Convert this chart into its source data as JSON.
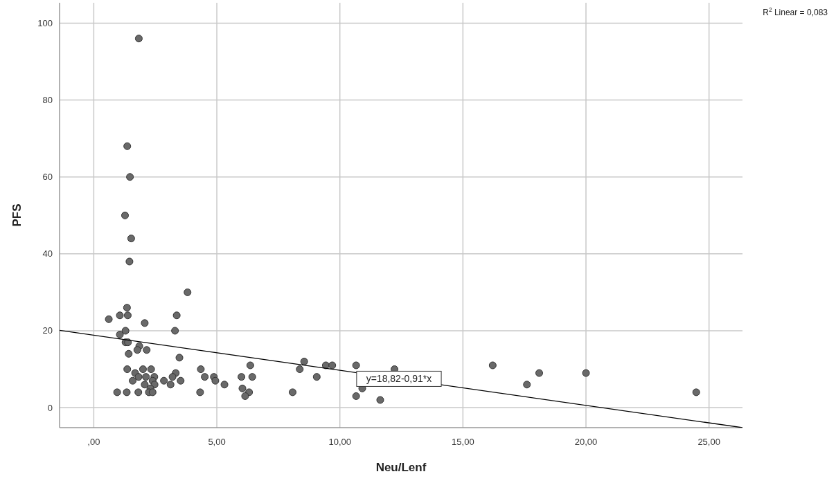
{
  "chart_data": {
    "type": "scatter",
    "xlabel": "Neu/Lenf",
    "ylabel": "PFS",
    "xlim": [
      -1.39,
      26.36
    ],
    "ylim": [
      -5.2,
      105.3
    ],
    "xticks": [
      {
        "value": 0,
        "label": ",00"
      },
      {
        "value": 5,
        "label": "5,00"
      },
      {
        "value": 10,
        "label": "10,00"
      },
      {
        "value": 15,
        "label": "15,00"
      },
      {
        "value": 20,
        "label": "20,00"
      },
      {
        "value": 25,
        "label": "25,00"
      }
    ],
    "yticks": [
      0,
      20,
      40,
      60,
      80,
      100
    ],
    "grid": true,
    "series": [
      {
        "marker": "circle",
        "color": "#696969",
        "x": [
          1.83,
          1.36,
          1.47,
          1.27,
          1.52,
          1.45,
          3.81,
          1.35,
          1.06,
          1.38,
          3.37,
          0.61,
          2.07,
          1.29,
          3.3,
          1.06,
          1.29,
          1.39,
          1.85,
          1.77,
          2.15,
          1.42,
          3.48,
          6.36,
          1.36,
          2.0,
          2.33,
          4.35,
          1.68,
          3.33,
          1.82,
          2.12,
          2.46,
          3.2,
          4.51,
          4.88,
          6.0,
          6.44,
          1.58,
          2.39,
          2.85,
          3.53,
          4.94,
          2.07,
          2.47,
          3.12,
          5.31,
          2.3,
          6.04,
          0.95,
          1.34,
          1.81,
          2.24,
          2.39,
          4.32,
          6.31,
          6.15,
          8.55,
          8.37,
          9.43,
          9.69,
          10.66,
          9.06,
          8.08,
          10.66,
          10.91,
          11.64,
          12.22,
          16.21,
          17.6,
          18.1,
          20.0,
          24.48
        ],
        "values": [
          96,
          68,
          60,
          50,
          44,
          38,
          30,
          26,
          24,
          24,
          24,
          23,
          22,
          20,
          20,
          19,
          17,
          17,
          16,
          15,
          15,
          14,
          13,
          11,
          10,
          10,
          10,
          10,
          9,
          9,
          8,
          8,
          8,
          8,
          8,
          8,
          8,
          8,
          7,
          7,
          7,
          7,
          7,
          6,
          6,
          6,
          6,
          5,
          5,
          4,
          4,
          4,
          4,
          4,
          4,
          4,
          3,
          12,
          10,
          11,
          11,
          11,
          8,
          4,
          3,
          5,
          2,
          10,
          11,
          6,
          9,
          9,
          4
        ]
      },
      {
        "type": "line",
        "marker": "none",
        "color": "#000000",
        "x": [
          -1.39,
          26.36
        ],
        "values": [
          20.1,
          -5.2
        ]
      }
    ],
    "annotations": [
      {
        "text": "y=18,82-0,91*x",
        "x": 12.4,
        "y": 7.5
      },
      "R$^{2}$ Linear = 0,083"
    ]
  }
}
